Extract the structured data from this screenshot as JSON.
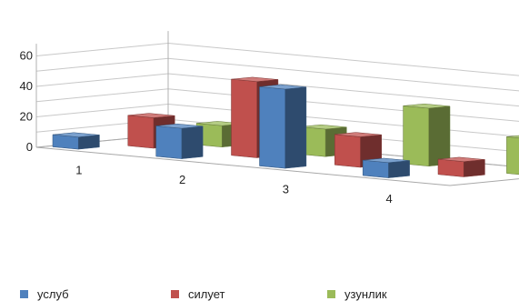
{
  "chart_data": {
    "type": "bar",
    "variant": "3d-column-clustered-depth",
    "categories": [
      "1",
      "2",
      "3",
      "4"
    ],
    "series": [
      {
        "name": "услуб",
        "values": [
          8,
          20,
          52,
          10
        ]
      },
      {
        "name": "силует",
        "values": [
          20,
          50,
          20,
          10
        ]
      },
      {
        "name": "узунлик",
        "values": [
          14,
          18,
          38,
          24
        ]
      }
    ],
    "y_ticks": [
      "0",
      "20",
      "40",
      "60"
    ],
    "ylim": [
      0,
      60
    ],
    "grid": true,
    "legend_position": "bottom",
    "colors": [
      "#4F81BD",
      "#C0504D",
      "#9BBB59"
    ]
  }
}
